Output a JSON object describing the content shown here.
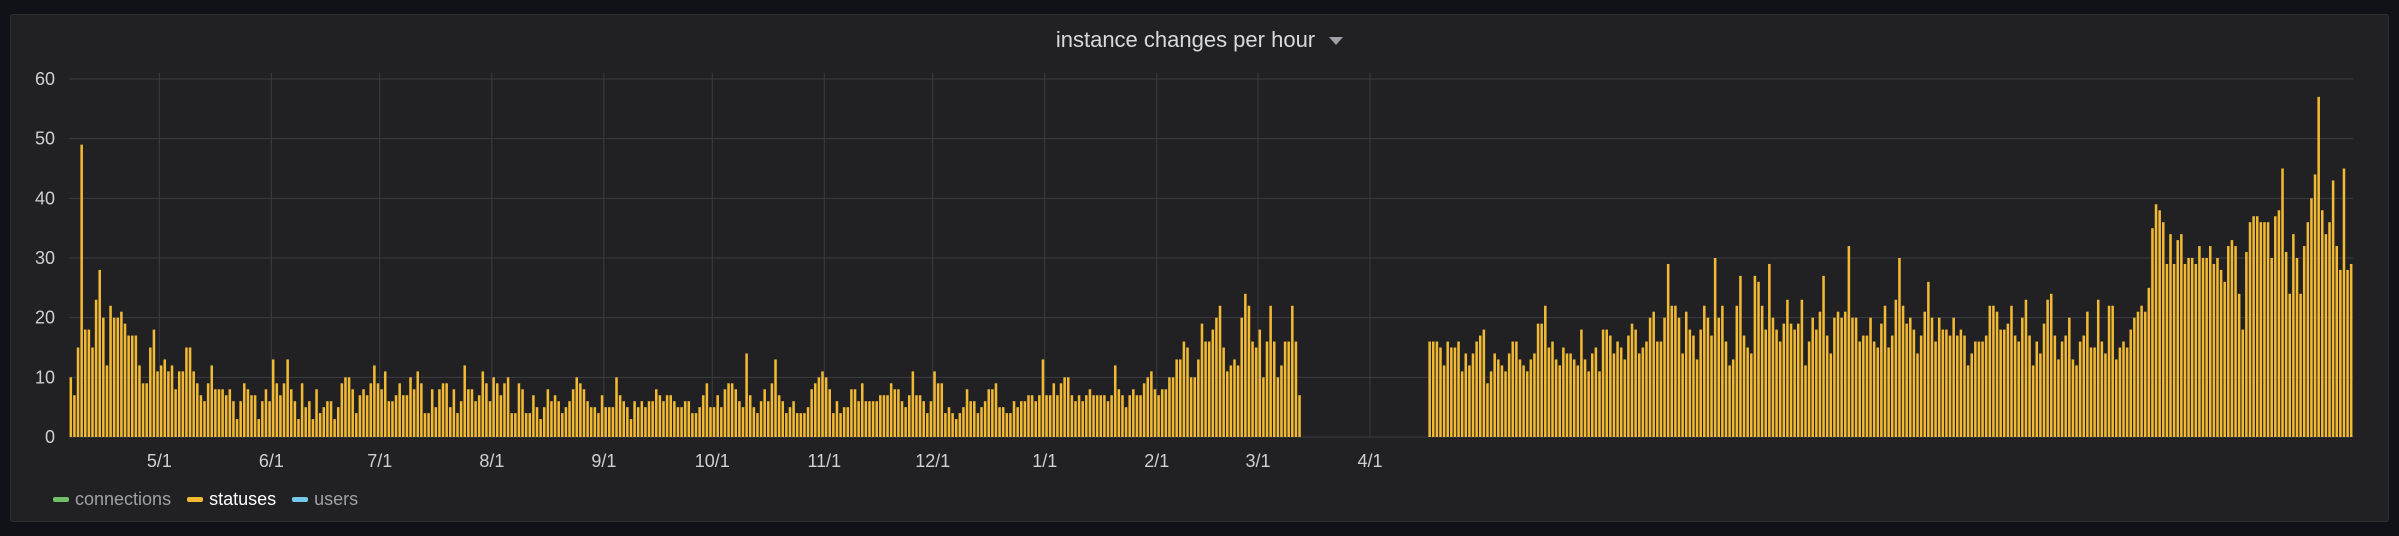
{
  "panel": {
    "title": "instance changes per hour"
  },
  "legend": [
    {
      "label": "connections",
      "color": "#73bf69",
      "active": false
    },
    {
      "label": "statuses",
      "color": "#f2b933",
      "active": true
    },
    {
      "label": "users",
      "color": "#73c9e8",
      "active": false
    }
  ],
  "colors": {
    "background": "#212124",
    "grid": "#3b3c40",
    "axis_text": "#cfd0d3",
    "bar": "#f2b933"
  },
  "chart_data": {
    "type": "bar",
    "ylim": [
      0,
      60
    ],
    "y_ticks": [
      0,
      10,
      20,
      30,
      40,
      50,
      60
    ],
    "x_ticks": [
      "5/1",
      "6/1",
      "7/1",
      "8/1",
      "9/1",
      "10/1",
      "11/1",
      "12/1",
      "1/1",
      "2/1",
      "3/1",
      "4/1"
    ],
    "x_tick_day_index": [
      25,
      56,
      86,
      117,
      148,
      178,
      209,
      239,
      270,
      301,
      329,
      360
    ],
    "grid": true,
    "series": [
      {
        "name": "statuses",
        "x_start_day": 0,
        "values": [
          10,
          7,
          15,
          49,
          18,
          18,
          15,
          23,
          28,
          20,
          12,
          22,
          20,
          20,
          21,
          19,
          17,
          17,
          17,
          12,
          9,
          9,
          15,
          18,
          11,
          12,
          13,
          11,
          12,
          8,
          11,
          11,
          15,
          15,
          11,
          9,
          7,
          6,
          9,
          12,
          8,
          8,
          8,
          7,
          8,
          6,
          3,
          6,
          9,
          8,
          7,
          7,
          3,
          6,
          8,
          6,
          13,
          9,
          7,
          9,
          13,
          8,
          6,
          3,
          9,
          5,
          6,
          3,
          8,
          4,
          5,
          6,
          6,
          3,
          5,
          9,
          10,
          10,
          8,
          4,
          7,
          8,
          7,
          9,
          12,
          9,
          8,
          11,
          6,
          6,
          7,
          9,
          7,
          7,
          10,
          8,
          11,
          9,
          4,
          4,
          8,
          5,
          8,
          9,
          9,
          5,
          8,
          4,
          6,
          12,
          8,
          8,
          6,
          7,
          11,
          9,
          6,
          10,
          9,
          7,
          9,
          10,
          4,
          4,
          9,
          8,
          4,
          4,
          7,
          5,
          3,
          5,
          8,
          6,
          7,
          6,
          4,
          5,
          6,
          8,
          10,
          9,
          8,
          6,
          5,
          5,
          4,
          7,
          5,
          5,
          5,
          10,
          7,
          6,
          5,
          3,
          6,
          5,
          6,
          5,
          6,
          6,
          8,
          7,
          6,
          7,
          7,
          6,
          5,
          5,
          6,
          6,
          4,
          4,
          5,
          7,
          9,
          5,
          5,
          7,
          5,
          8,
          9,
          9,
          8,
          6,
          5,
          14,
          7,
          5,
          4,
          6,
          8,
          6,
          9,
          13,
          7,
          6,
          4,
          5,
          6,
          4,
          4,
          4,
          5,
          8,
          9,
          10,
          11,
          10,
          8,
          4,
          6,
          4,
          5,
          5,
          8,
          8,
          6,
          9,
          6,
          6,
          6,
          6,
          7,
          7,
          7,
          9,
          8,
          8,
          6,
          5,
          7,
          11,
          7,
          7,
          6,
          4,
          6,
          11,
          9,
          9,
          4,
          5,
          4,
          3,
          4,
          5,
          8,
          6,
          6,
          4,
          5,
          6,
          8,
          8,
          9,
          5,
          5,
          4,
          4,
          6,
          5,
          6,
          6,
          7,
          7,
          6,
          7,
          13,
          7,
          7,
          9,
          7,
          9,
          10,
          10,
          7,
          6,
          7,
          6,
          7,
          8,
          7,
          7,
          7,
          7,
          6,
          7,
          12,
          8,
          7,
          5,
          7,
          8,
          7,
          7,
          9,
          10,
          11,
          8,
          7,
          8,
          8,
          10,
          10,
          13,
          13,
          16,
          15,
          10,
          10,
          13,
          19,
          16,
          16,
          18,
          20,
          22,
          15,
          11,
          12,
          13,
          12,
          20,
          24,
          22,
          16,
          15,
          18,
          10,
          16,
          22,
          16,
          10,
          12,
          16,
          16,
          22,
          16,
          7,
          null,
          null,
          null,
          null,
          null,
          null,
          null,
          null,
          null,
          null,
          null,
          null,
          null,
          null,
          null,
          null,
          null,
          null,
          null,
          null,
          null,
          null,
          null,
          null,
          null,
          null,
          null,
          null,
          null,
          null,
          null,
          null,
          null,
          null,
          null,
          16,
          16,
          16,
          15,
          12,
          16,
          15,
          15,
          16,
          11,
          14,
          12,
          14,
          16,
          17,
          18,
          9,
          11,
          14,
          13,
          12,
          11,
          14,
          16,
          16,
          13,
          12,
          11,
          13,
          14,
          19,
          19,
          22,
          15,
          16,
          13,
          12,
          15,
          14,
          14,
          13,
          12,
          18,
          13,
          11,
          14,
          15,
          11,
          18,
          18,
          17,
          14,
          16,
          15,
          13,
          17,
          19,
          18,
          14,
          15,
          16,
          20,
          21,
          16,
          16,
          20,
          29,
          22,
          22,
          20,
          14,
          21,
          18,
          17,
          13,
          18,
          22,
          20,
          17,
          30,
          20,
          22,
          16,
          12,
          13,
          22,
          27,
          17,
          15,
          14,
          27,
          26,
          22,
          18,
          29,
          20,
          18,
          16,
          19,
          23,
          19,
          18,
          19,
          23,
          12,
          16,
          20,
          18,
          21,
          27,
          17,
          14,
          20,
          21,
          20,
          21,
          32,
          20,
          20,
          16,
          17,
          17,
          20,
          16,
          15,
          19,
          22,
          15,
          17,
          23,
          30,
          22,
          19,
          20,
          18,
          14,
          17,
          21,
          26,
          20,
          16,
          20,
          18,
          18,
          17,
          20,
          17,
          18,
          17,
          12,
          14,
          16,
          16,
          16,
          17,
          22,
          22,
          21,
          18,
          18,
          19,
          22,
          17,
          16,
          20,
          23,
          17,
          12,
          16,
          14,
          19,
          23,
          24,
          17,
          13,
          16,
          17,
          20,
          13,
          12,
          16,
          17,
          21,
          15,
          15,
          23,
          16,
          14,
          22,
          22,
          13,
          15,
          16,
          15,
          18,
          20,
          21,
          22,
          21,
          25,
          35,
          39,
          38,
          36,
          29,
          34,
          29,
          33,
          34,
          29,
          30,
          30,
          29,
          32,
          30,
          30,
          32,
          29,
          30,
          28,
          26,
          32,
          33,
          32,
          24,
          18,
          31,
          36,
          37,
          37,
          36,
          36,
          36,
          30,
          37,
          38,
          45,
          31,
          24,
          34,
          30,
          24,
          32,
          36,
          40,
          44,
          57,
          38,
          34,
          36,
          43,
          32,
          28,
          45,
          28,
          29
        ]
      }
    ]
  }
}
